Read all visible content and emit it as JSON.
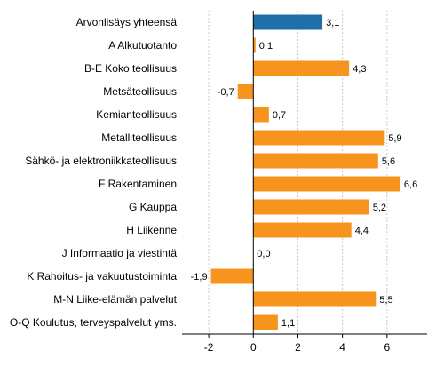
{
  "chart_data": {
    "type": "bar",
    "orientation": "horizontal",
    "categories": [
      "Arvonlisäys yhteensä",
      "A Alkutuotanto",
      "B-E Koko teollisuus",
      "Metsäteollisuus",
      "Kemianteollisuus",
      "Metalliteollisuus",
      "Sähkö- ja elektroniikkateollisuus",
      "F Rakentaminen",
      "G Kauppa",
      "H Liikenne",
      "J Informaatio ja viestintä",
      "K Rahoitus- ja vakuutustoiminta",
      "M-N Liike-elämän palvelut",
      "O-Q Koulutus, terveyspalvelut yms."
    ],
    "values": [
      3.1,
      0.1,
      4.3,
      -0.7,
      0.7,
      5.9,
      5.6,
      6.6,
      5.2,
      4.4,
      0.0,
      -1.9,
      5.5,
      1.1
    ],
    "value_labels": [
      "3,1",
      "0,1",
      "4,3",
      "-0,7",
      "0,7",
      "5,9",
      "5,6",
      "6,6",
      "5,2",
      "4,4",
      "0,0",
      "-1,9",
      "5,5",
      "1,1"
    ],
    "highlight_index": 0,
    "colors": {
      "highlight": "#1f6fa8",
      "default": "#f7941d",
      "axis": "#000000",
      "grid": "#c8c8c8"
    },
    "xlim": [
      -3.2,
      7.8
    ],
    "xticks": [
      -2,
      0,
      2,
      4,
      6
    ],
    "xtick_labels": [
      "-2",
      "0",
      "2",
      "4",
      "6"
    ],
    "grid": "vertical-dashed",
    "title": "",
    "xlabel": "",
    "ylabel": ""
  }
}
